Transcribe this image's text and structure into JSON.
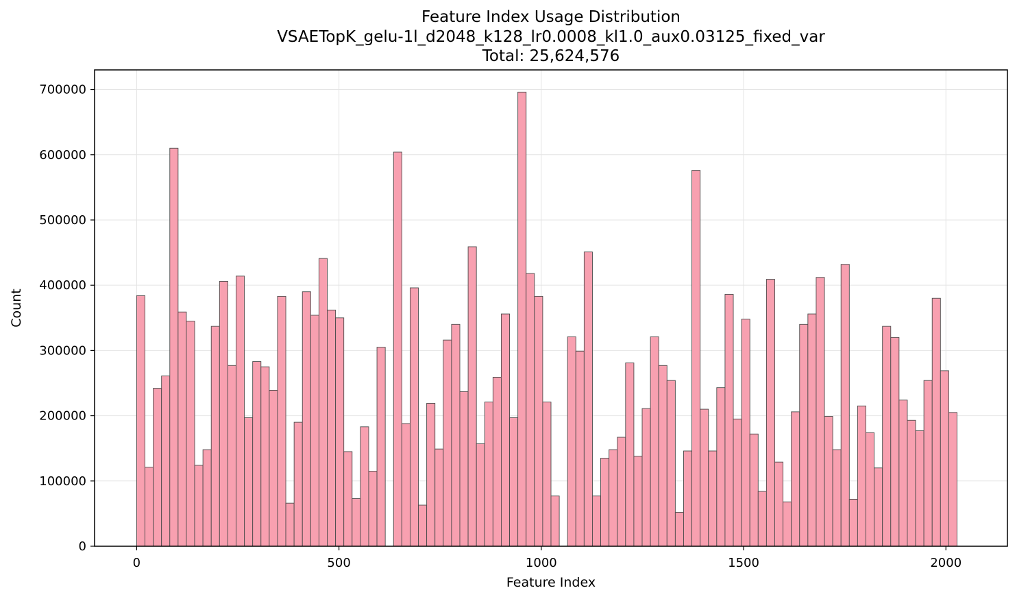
{
  "chart_data": {
    "type": "bar",
    "title": "Feature Index Usage Distribution",
    "subtitle": "VSAETopK_gelu-1l_d2048_k128_lr0.0008_kl1.0_aux0.03125_fixed_var",
    "total_label": "Total: 25,624,576",
    "xlabel": "Feature Index",
    "ylabel": "Count",
    "xlim": [
      -104,
      2152
    ],
    "ylim": [
      0,
      730000
    ],
    "xticks": [
      0,
      500,
      1000,
      1500,
      2000
    ],
    "yticks": [
      0,
      100000,
      200000,
      300000,
      400000,
      500000,
      600000,
      700000
    ],
    "xtick_labels": [
      "0",
      "500",
      "1000",
      "1500",
      "2000"
    ],
    "ytick_labels": [
      "0",
      "100000",
      "200000",
      "300000",
      "400000",
      "500000",
      "600000",
      "700000"
    ],
    "bin_start": 0,
    "bin_width": 20.48,
    "values": [
      384000,
      121000,
      242000,
      261000,
      610000,
      359000,
      345000,
      124000,
      148000,
      337000,
      406000,
      277000,
      414000,
      197000,
      283000,
      275000,
      239000,
      383000,
      66000,
      190000,
      390000,
      354000,
      441000,
      362000,
      350000,
      145000,
      73000,
      183000,
      115000,
      305000,
      0,
      604000,
      188000,
      396000,
      63000,
      219000,
      149000,
      316000,
      340000,
      237000,
      459000,
      157000,
      221000,
      259000,
      356000,
      197000,
      696000,
      418000,
      383000,
      221000,
      77000,
      0,
      321000,
      299000,
      451000,
      77000,
      135000,
      148000,
      167000,
      281000,
      138000,
      211000,
      321000,
      277000,
      254000,
      52000,
      146000,
      576000,
      210000,
      146000,
      243000,
      386000,
      195000,
      348000,
      172000,
      84000,
      409000,
      129000,
      68000,
      206000,
      340000,
      356000,
      412000,
      199000,
      148000,
      432000,
      72000,
      215000,
      174000,
      120000,
      337000,
      320000,
      224000,
      193000,
      177000,
      254000,
      380000,
      269000,
      205000
    ],
    "bar_color": "#f8a0b0",
    "edge_color": "#4a4a4a",
    "grid": true
  }
}
